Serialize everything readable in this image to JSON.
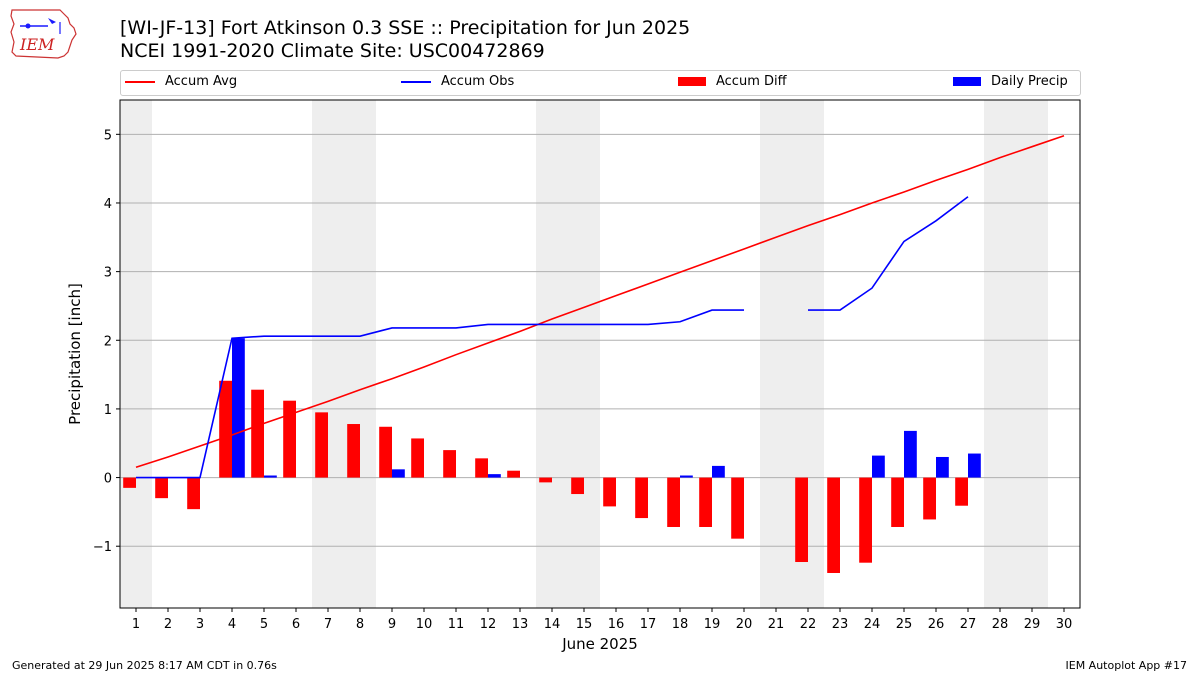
{
  "header": {
    "title_line1": "[WI-JF-13] Fort Atkinson 0.3 SSE :: Precipitation for Jun 2025",
    "title_line2": "NCEI 1991-2020 Climate Site: USC00472869",
    "logo_text": "IEM"
  },
  "footer": {
    "generated": "Generated at 29 Jun 2025 8:17 AM CDT in 0.76s",
    "app": "IEM Autoplot App #17"
  },
  "colors": {
    "accum_avg": "#ff0000",
    "accum_obs": "#0000ff",
    "accum_diff": "#ff0000",
    "daily_precip": "#0000ff",
    "weekend_band": "#eeeeee",
    "grid": "#b0b0b0"
  },
  "chart_data": {
    "type": "bar",
    "xlabel": "June 2025",
    "ylabel": "Precipitation [inch]",
    "xlim": [
      0.5,
      30.5
    ],
    "ylim": [
      -1.9,
      5.5
    ],
    "yticks": [
      -1,
      0,
      1,
      2,
      3,
      4,
      5
    ],
    "ytick_labels": [
      "−1",
      "0",
      "1",
      "2",
      "3",
      "4",
      "5"
    ],
    "grid": "y",
    "legend_placement": "top",
    "days": [
      1,
      2,
      3,
      4,
      5,
      6,
      7,
      8,
      9,
      10,
      11,
      12,
      13,
      14,
      15,
      16,
      17,
      18,
      19,
      20,
      21,
      22,
      23,
      24,
      25,
      26,
      27,
      28,
      29,
      30
    ],
    "shaded_spans": [
      [
        0.5,
        1.5
      ],
      [
        6.5,
        8.5
      ],
      [
        13.5,
        15.5
      ],
      [
        20.5,
        22.5
      ],
      [
        27.5,
        29.5
      ]
    ],
    "series": [
      {
        "name": "Accum Avg",
        "kind": "line",
        "values": [
          0.15,
          0.3,
          0.46,
          0.62,
          0.79,
          0.95,
          1.11,
          1.28,
          1.44,
          1.61,
          1.79,
          1.96,
          2.13,
          2.31,
          2.48,
          2.65,
          2.82,
          2.99,
          3.16,
          3.33,
          3.5,
          3.67,
          3.83,
          4.0,
          4.16,
          4.33,
          4.49,
          4.66,
          4.82,
          4.98
        ]
      },
      {
        "name": "Accum Obs",
        "kind": "line",
        "values": [
          0,
          0,
          0,
          2.03,
          2.06,
          2.06,
          2.06,
          2.06,
          2.18,
          2.18,
          2.18,
          2.23,
          2.23,
          2.23,
          2.23,
          2.23,
          2.23,
          2.27,
          2.44,
          2.44,
          null,
          2.44,
          2.44,
          2.76,
          3.44,
          3.74,
          4.09,
          null,
          null,
          null
        ]
      },
      {
        "name": "Accum Diff",
        "kind": "bar",
        "values": [
          -0.15,
          -0.3,
          -0.46,
          1.41,
          1.28,
          1.12,
          0.95,
          0.78,
          0.74,
          0.57,
          0.4,
          0.28,
          0.1,
          -0.07,
          -0.24,
          -0.42,
          -0.59,
          -0.72,
          -0.72,
          -0.89,
          null,
          -1.23,
          -1.39,
          -1.24,
          -0.72,
          -0.61,
          -0.41,
          null,
          null,
          null
        ]
      },
      {
        "name": "Daily Precip",
        "kind": "bar",
        "values": [
          0,
          0,
          0,
          2.03,
          0.03,
          0,
          0,
          0,
          0.12,
          0,
          0,
          0.05,
          0,
          0,
          0,
          0,
          0,
          0.03,
          0.17,
          0,
          null,
          0,
          0,
          0.32,
          0.68,
          0.3,
          0.35,
          null,
          null,
          null
        ]
      }
    ]
  }
}
